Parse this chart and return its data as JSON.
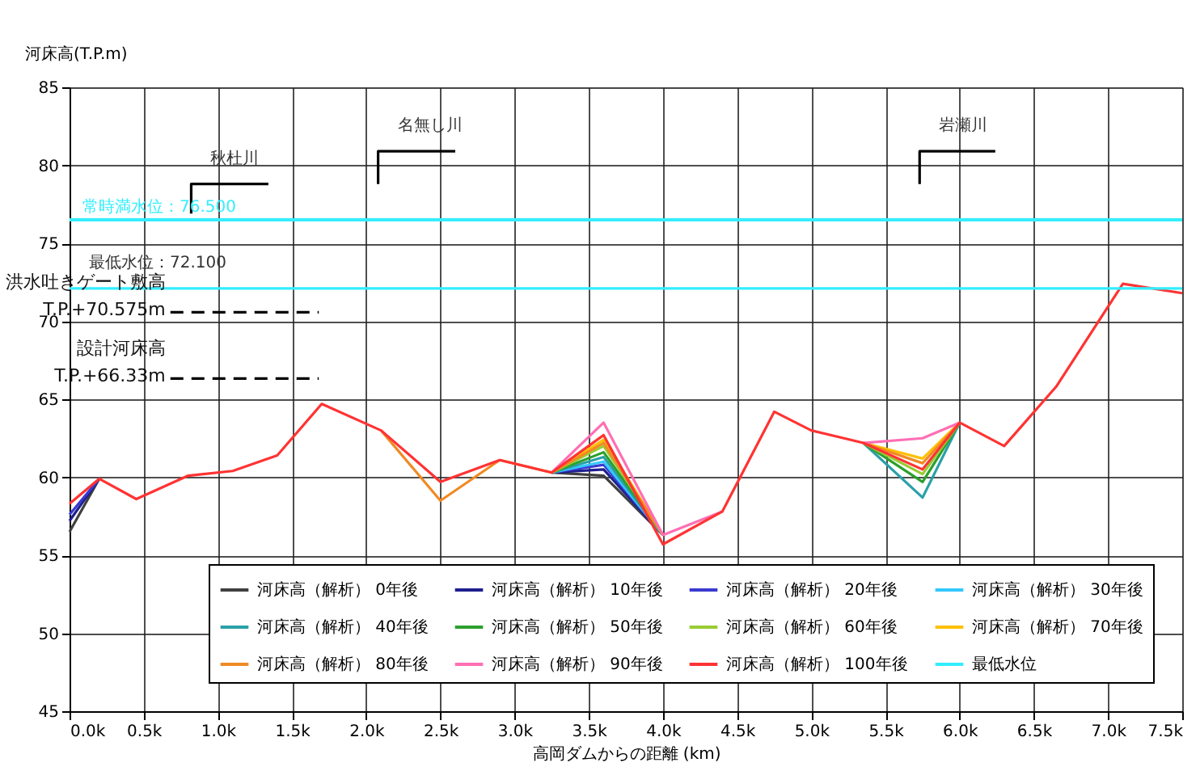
{
  "chart_data": {
    "type": "line",
    "xlabel": "高岡ダムからの距離 (km)",
    "ylabel": "河床高(T.P.m)",
    "x": [
      0,
      0.2,
      0.45,
      0.8,
      1.1,
      1.4,
      1.7,
      2.1,
      2.5,
      2.9,
      3.25,
      3.6,
      4.0,
      4.4,
      4.75,
      5.0,
      5.35,
      5.75,
      6.0,
      6.3,
      6.65,
      7.1,
      7.5
    ],
    "series": [
      {
        "name": "河床高（解析） 0年後",
        "color": "#404040",
        "values": [
          56.5,
          59.9,
          null,
          null,
          null,
          null,
          null,
          null,
          null,
          null,
          60.3,
          60.1,
          56.3,
          null,
          null,
          null,
          null,
          null,
          null,
          null,
          null,
          null,
          null
        ]
      },
      {
        "name": "河床高（解析） 10年後",
        "color": "#1f1f8f",
        "values": [
          57.2,
          59.9,
          null,
          null,
          null,
          null,
          null,
          null,
          null,
          null,
          60.3,
          60.5,
          56.3,
          null,
          null,
          null,
          null,
          null,
          null,
          null,
          null,
          null,
          null
        ]
      },
      {
        "name": "河床高（解析） 20年後",
        "color": "#3a3ad0",
        "values": [
          57.6,
          59.9,
          null,
          null,
          null,
          null,
          null,
          null,
          null,
          null,
          60.3,
          60.8,
          56.3,
          null,
          null,
          null,
          null,
          null,
          null,
          null,
          null,
          null,
          null
        ]
      },
      {
        "name": "河床高（解析） 30年後",
        "color": "#33c8ff",
        "values": [
          null,
          null,
          null,
          null,
          null,
          null,
          null,
          null,
          null,
          null,
          60.3,
          61.0,
          56.3,
          null,
          null,
          null,
          null,
          null,
          null,
          null,
          null,
          null,
          null
        ]
      },
      {
        "name": "河床高（解析） 40年後",
        "color": "#2aa0a8",
        "values": [
          null,
          null,
          null,
          null,
          null,
          null,
          null,
          null,
          null,
          null,
          60.3,
          61.3,
          56.3,
          null,
          null,
          null,
          62.2,
          58.7,
          63.5,
          null,
          null,
          null,
          null
        ]
      },
      {
        "name": "河床高（解析） 50年後",
        "color": "#2ca02c",
        "values": [
          null,
          null,
          null,
          null,
          null,
          null,
          null,
          null,
          null,
          null,
          60.3,
          61.6,
          56.3,
          null,
          null,
          null,
          62.2,
          59.7,
          63.5,
          null,
          null,
          null,
          null
        ]
      },
      {
        "name": "河床高（解析） 60年後",
        "color": "#99cc33",
        "values": [
          null,
          null,
          null,
          null,
          null,
          null,
          null,
          null,
          null,
          null,
          60.3,
          62.0,
          56.3,
          null,
          null,
          null,
          62.2,
          60.2,
          63.5,
          null,
          null,
          null,
          null
        ]
      },
      {
        "name": "河床高（解析） 70年後",
        "color": "#ffc000",
        "values": [
          null,
          null,
          null,
          null,
          null,
          null,
          null,
          null,
          null,
          null,
          60.3,
          62.4,
          56.3,
          null,
          null,
          null,
          62.2,
          61.2,
          63.5,
          null,
          null,
          null,
          null
        ]
      },
      {
        "name": "河床高（解析） 80年後",
        "color": "#f08a24",
        "values": [
          null,
          null,
          null,
          null,
          null,
          null,
          null,
          63.0,
          58.5,
          61.1,
          60.3,
          62.2,
          56.3,
          null,
          null,
          null,
          62.2,
          60.9,
          63.5,
          null,
          null,
          null,
          null
        ]
      },
      {
        "name": "河床高（解析） 90年後",
        "color": "#ff6eb4",
        "values": [
          null,
          null,
          null,
          null,
          null,
          null,
          null,
          null,
          null,
          null,
          60.3,
          63.5,
          56.3,
          57.8,
          null,
          null,
          62.2,
          62.5,
          63.5,
          null,
          null,
          null,
          null
        ]
      },
      {
        "name": "河床高（解析） 100年後",
        "color": "#ff3333",
        "values": [
          58.3,
          59.9,
          58.6,
          60.1,
          60.4,
          61.4,
          64.7,
          63.0,
          59.7,
          61.1,
          60.3,
          62.7,
          55.7,
          57.8,
          64.2,
          63.0,
          62.2,
          60.5,
          63.5,
          62.0,
          65.8,
          72.4,
          71.8
        ]
      },
      {
        "name": "最低水位",
        "color": "#33eeff",
        "x": [
          0,
          7.5
        ],
        "values": [
          72.1,
          72.1
        ]
      },
      {
        "color": "#000000",
        "x": [
          0.68,
          1.68
        ],
        "values": [
          70.575,
          70.575
        ],
        "line_style": "dashed"
      },
      {
        "color": "#000000",
        "x": [
          0.68,
          1.68
        ],
        "values": [
          66.33,
          66.33
        ],
        "line_style": "dashed"
      },
      {
        "color": "#000000",
        "x": [
          0.82,
          0.82,
          1.34
        ],
        "values": [
          76.9,
          78.8,
          78.8
        ]
      },
      {
        "color": "#000000",
        "x": [
          2.08,
          2.08,
          2.6
        ],
        "values": [
          78.8,
          80.9,
          80.9
        ]
      },
      {
        "color": "#000000",
        "x": [
          5.73,
          5.73,
          6.24
        ],
        "values": [
          78.8,
          80.9,
          80.9
        ]
      }
    ],
    "ref_lines": [
      {
        "axis": "y",
        "value": 76.5,
        "label": "常時満水位：76.500",
        "color": "#33eeff"
      }
    ],
    "annotations": [
      {
        "text": "秋杜川",
        "x": 0.82,
        "y": 78.8
      },
      {
        "text": "名無し川",
        "x": 2.08,
        "y": 80.9
      },
      {
        "text": "岩瀬川",
        "x": 5.73,
        "y": 80.9
      },
      {
        "text": "最低水位：72.100",
        "x": 0,
        "y": 72.1
      },
      {
        "text": "洪水吐きゲート敷高\nT.P.+70.575m",
        "x": 0.68,
        "y": 70.575
      },
      {
        "text": "設計河床高\nT.P.+66.33m",
        "x": 0.68,
        "y": 66.33
      }
    ],
    "xlim": [
      0,
      7.5
    ],
    "xticks": [
      {
        "value": 0,
        "label": "0.0k"
      },
      {
        "value": 0.5,
        "label": "0.5k"
      },
      {
        "value": 1,
        "label": "1.0k"
      },
      {
        "value": 1.5,
        "label": "1.5k"
      },
      {
        "value": 2,
        "label": "2.0k"
      },
      {
        "value": 2.5,
        "label": "2.5k"
      },
      {
        "value": 3,
        "label": "3.0k"
      },
      {
        "value": 3.5,
        "label": "3.5k"
      },
      {
        "value": 4,
        "label": "4.0k"
      },
      {
        "value": 4.5,
        "label": "4.5k"
      },
      {
        "value": 5,
        "label": "5.0k"
      },
      {
        "value": 5.5,
        "label": "5.5k"
      },
      {
        "value": 6,
        "label": "6.0k"
      },
      {
        "value": 6.5,
        "label": "6.5k"
      },
      {
        "value": 7,
        "label": "7.0k"
      },
      {
        "value": 7.5,
        "label": "7.5k"
      }
    ],
    "ylim": [
      45,
      85
    ],
    "yticks": [
      45,
      50,
      55,
      60,
      65,
      70,
      75,
      80,
      85
    ],
    "grid": true,
    "legend": "bottom right",
    "line_style": "solid"
  }
}
